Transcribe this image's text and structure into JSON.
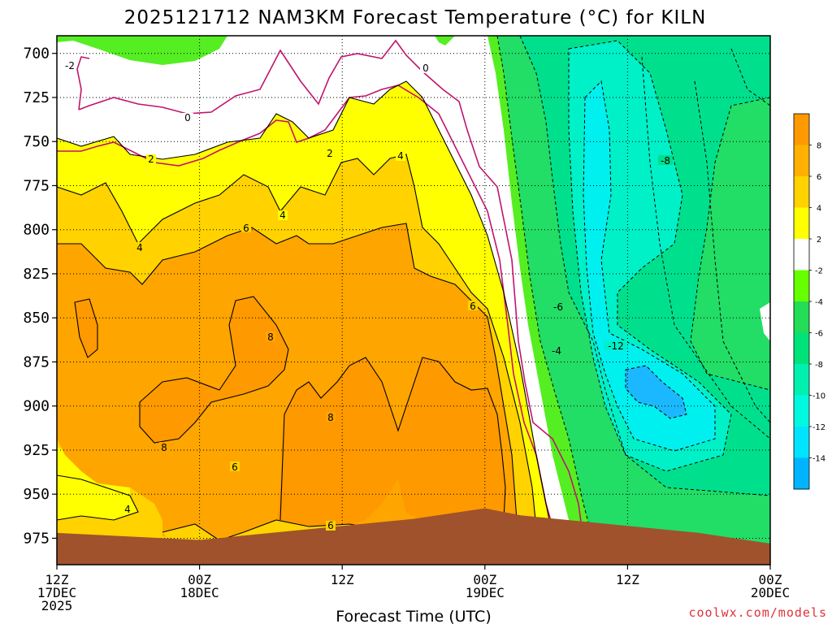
{
  "chart_data": {
    "type": "heatmap",
    "title": "2025121712 NAM3KM Forecast Temperature (°C) for KILN",
    "xlabel": "Forecast Time (UTC)",
    "credit": "coolwx.com/models",
    "y_axis": {
      "ticks": [
        700,
        725,
        750,
        775,
        800,
        825,
        850,
        875,
        900,
        925,
        950,
        975
      ],
      "range": [
        690,
        990
      ],
      "inverted": true,
      "grid": "dotted"
    },
    "x_axis": {
      "ticks": [
        {
          "line1": "12Z",
          "line2": "17DEC",
          "line3": "2025"
        },
        {
          "line1": "00Z",
          "line2": "18DEC",
          "line3": ""
        },
        {
          "line1": "12Z",
          "line2": "",
          "line3": ""
        },
        {
          "line1": "00Z",
          "line2": "19DEC",
          "line3": ""
        },
        {
          "line1": "12Z",
          "line2": "",
          "line3": ""
        },
        {
          "line1": "00Z",
          "line2": "20DEC",
          "line3": ""
        }
      ],
      "hours": [
        0,
        12,
        24,
        36,
        48,
        60
      ],
      "range": [
        0,
        60
      ]
    },
    "colorbar": {
      "labels": [
        "8",
        "6",
        "4",
        "2",
        "-2",
        "-4",
        "-6",
        "-8",
        "-10",
        "-12",
        "-14"
      ],
      "colors": [
        "#ff9900",
        "#ffb000",
        "#ffd200",
        "#ffff00",
        "#ffffff",
        "#66ff00",
        "#22dd55",
        "#00e27a",
        "#00f0b0",
        "#00f8e0",
        "#00e4ff",
        "#00b4ff"
      ]
    },
    "colors": {
      "t_ge_8": "#ffa500",
      "t_6_8": "#ffd200",
      "t_2_6": "#ffff00",
      "t_m2_2": "#ffffff",
      "t_m4_m2": "#66ff00",
      "t_m8_m4": "#22dd66",
      "t_m10_m8": "#00e8a0",
      "t_m12_m10": "#00f4d8",
      "t_le_m12": "#00bfff",
      "terrain": "#a0522d",
      "zero_contour": "#c0146e"
    },
    "contour_labels": [
      "-2",
      "0",
      "0",
      "2",
      "2",
      "4",
      "4",
      "6",
      "6",
      "8",
      "8",
      "8",
      "6",
      "6",
      "4",
      "4",
      "-4",
      "-6",
      "-8",
      "-12"
    ],
    "surface_pressure": [
      [
        0,
        972
      ],
      [
        6,
        974
      ],
      [
        12,
        976
      ],
      [
        18,
        972
      ],
      [
        24,
        968
      ],
      [
        30,
        964
      ],
      [
        36,
        958
      ],
      [
        39,
        962
      ],
      [
        42,
        964
      ],
      [
        45,
        966
      ],
      [
        48,
        968
      ],
      [
        54,
        972
      ],
      [
        60,
        978
      ]
    ]
  }
}
